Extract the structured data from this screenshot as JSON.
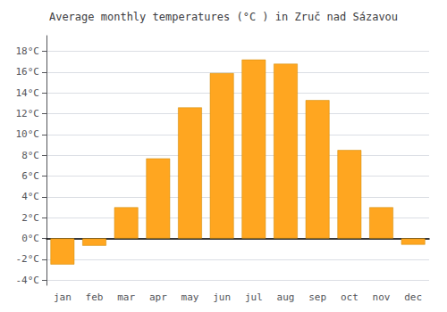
{
  "chart_data": {
    "type": "bar",
    "title": "Average monthly temperatures (°C ) in Zruč nad Sázavou",
    "categories": [
      "jan",
      "feb",
      "mar",
      "apr",
      "may",
      "jun",
      "jul",
      "aug",
      "sep",
      "oct",
      "nov",
      "dec"
    ],
    "values": [
      -2.5,
      -0.7,
      3.0,
      7.7,
      12.6,
      15.9,
      17.2,
      16.8,
      13.3,
      8.5,
      3.0,
      -0.6
    ],
    "color": "#FFA620",
    "ylim": [
      -4.5,
      19.5
    ],
    "yticks": [
      {
        "value": -4,
        "label": "-4°C"
      },
      {
        "value": -2,
        "label": "-2°C"
      },
      {
        "value": 0,
        "label": "0°C"
      },
      {
        "value": 2,
        "label": "2°C"
      },
      {
        "value": 4,
        "label": "4°C"
      },
      {
        "value": 6,
        "label": "6°C"
      },
      {
        "value": 8,
        "label": "8°C"
      },
      {
        "value": 10,
        "label": "10°C"
      },
      {
        "value": 12,
        "label": "12°C"
      },
      {
        "value": 14,
        "label": "14°C"
      },
      {
        "value": 16,
        "label": "16°C"
      },
      {
        "value": 18,
        "label": "18°C"
      }
    ],
    "grid": true
  }
}
